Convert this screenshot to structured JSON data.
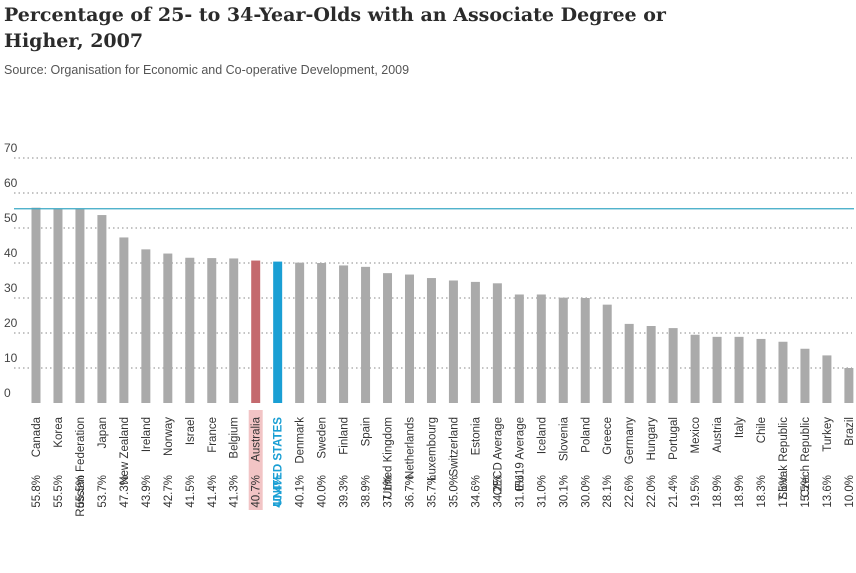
{
  "title": "Percentage of 25- to 34-Year-Olds with an Associate Degree or Higher, 2007",
  "subtitle": "Source: Organisation for Economic and Co-operative Development, 2009",
  "colors": {
    "bar": "#aaaaaa",
    "australia_bar": "#c46a6e",
    "australia_label_bg": "#f2c4c5",
    "us_bar": "#1a9fd4",
    "us_label": "#1a9fd4",
    "reference_line": "#3aa8c4",
    "grid": "#888888"
  },
  "chart_data": {
    "type": "bar",
    "ylim": [
      0,
      70
    ],
    "yticks": [
      0,
      10,
      20,
      30,
      40,
      50,
      60,
      70
    ],
    "grid": true,
    "reference_line": 55.5,
    "categories": [
      "Canada",
      "Korea",
      "Russian Federation",
      "Japan",
      "New Zealand",
      "Ireland",
      "Norway",
      "Israel",
      "France",
      "Belgium",
      "Australia",
      "UNITED STATES",
      "Denmark",
      "Sweden",
      "Finland",
      "Spain",
      "United Kingdom",
      "Netherlands",
      "Luxembourg",
      "Switzerland",
      "Estonia",
      "OECD Average",
      "EU19 Average",
      "Iceland",
      "Slovenia",
      "Poland",
      "Greece",
      "Germany",
      "Hungary",
      "Portugal",
      "Mexico",
      "Austria",
      "Italy",
      "Chile",
      "Slovak Republic",
      "Czech Republic",
      "Turkey",
      "Brazil"
    ],
    "values": [
      55.8,
      55.5,
      55.5,
      53.7,
      47.3,
      43.9,
      42.7,
      41.5,
      41.4,
      41.3,
      40.7,
      40.4,
      40.1,
      40.0,
      39.3,
      38.9,
      37.1,
      36.7,
      35.7,
      35.0,
      34.6,
      34.2,
      31.0,
      31.0,
      30.1,
      30.0,
      28.1,
      22.6,
      22.0,
      21.4,
      19.5,
      18.9,
      18.9,
      18.3,
      17.5,
      15.5,
      13.6,
      10.0
    ],
    "value_labels": [
      "55.8%",
      "55.5%",
      "55.5%",
      "53.7%",
      "47.3%",
      "43.9%",
      "42.7%",
      "41.5%",
      "41.4%",
      "41.3%",
      "40.7%",
      "40.4%",
      "40.1%",
      "40.0%",
      "39.3%",
      "38.9%",
      "37.1%",
      "36.7%",
      "35.7%",
      "35.0%",
      "34.6%",
      "34.2%",
      "31.0%",
      "31.0%",
      "30.1%",
      "30.0%",
      "28.1%",
      "22.6%",
      "22.0%",
      "21.4%",
      "19.5%",
      "18.9%",
      "18.9%",
      "18.3%",
      "17.5%",
      "15.5%",
      "13.6%",
      "10.0%"
    ],
    "highlight": {
      "Australia": "australia",
      "UNITED STATES": "us"
    }
  }
}
